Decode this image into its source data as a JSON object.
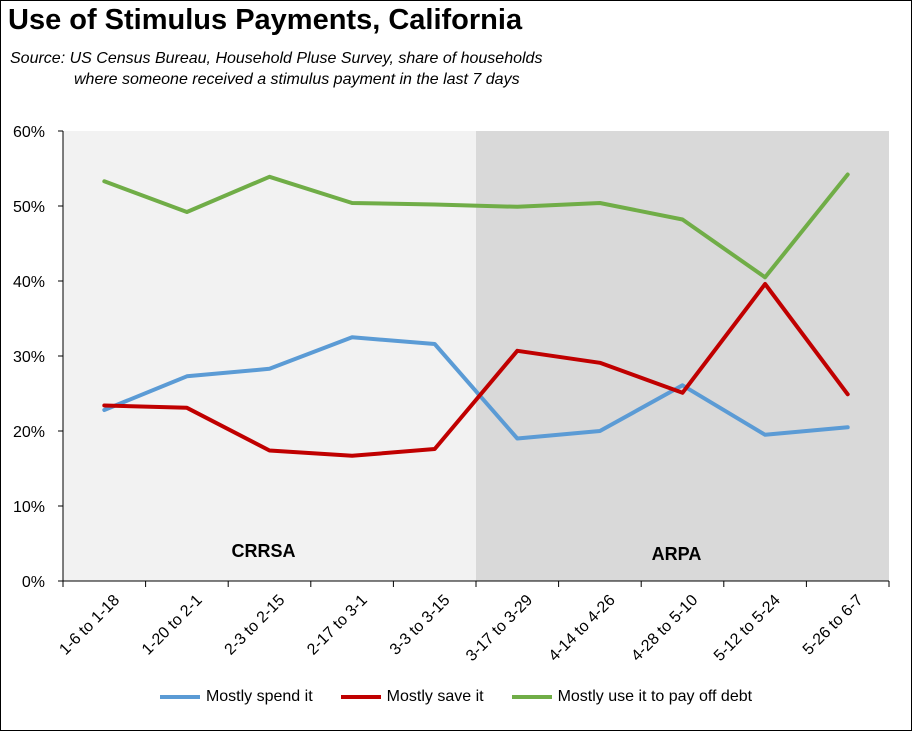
{
  "title": "Use of Stimulus Payments, California",
  "subtitle_line1": "Source:  US Census Bureau, Household Pluse Survey, share of households",
  "subtitle_line2": "where someone received a stimulus payment in the last 7 days",
  "chart_data": {
    "type": "line",
    "categories": [
      "1-6 to 1-18",
      "1-20 to 2-1",
      "2-3 to 2-15",
      "2-17 to 3-1",
      "3-3 to 3-15",
      "3-17 to 3-29",
      "4-14 to 4-26",
      "4-28 to 5-10",
      "5-12 to 5-24",
      "5-26 to 6-7"
    ],
    "ylim": [
      0,
      60
    ],
    "yticks": [
      0,
      10,
      20,
      30,
      40,
      50,
      60
    ],
    "ytick_labels": [
      "0%",
      "10%",
      "20%",
      "30%",
      "40%",
      "50%",
      "60%"
    ],
    "grid": false,
    "legend_position": "bottom",
    "regions": [
      {
        "label": "CRRSA",
        "from_category_index": 0,
        "to_category_index": 4,
        "color": "#f2f2f2"
      },
      {
        "label": "ARPA",
        "from_category_index": 5,
        "to_category_index": 9,
        "color": "#d9d9d9"
      }
    ],
    "series": [
      {
        "name": "Mostly spend it",
        "color": "#5b9bd5",
        "values": [
          22.8,
          27.3,
          28.3,
          32.5,
          31.6,
          19.0,
          20.0,
          26.1,
          19.5,
          20.5
        ]
      },
      {
        "name": "Mostly save it",
        "color": "#c00000",
        "values": [
          23.4,
          23.1,
          17.4,
          16.7,
          17.6,
          30.7,
          29.1,
          25.1,
          39.6,
          24.9
        ]
      },
      {
        "name": "Mostly use it to pay off debt",
        "color": "#70ad47",
        "values": [
          53.3,
          49.2,
          53.9,
          50.4,
          50.2,
          49.9,
          50.4,
          48.2,
          40.5,
          54.2
        ]
      }
    ]
  }
}
